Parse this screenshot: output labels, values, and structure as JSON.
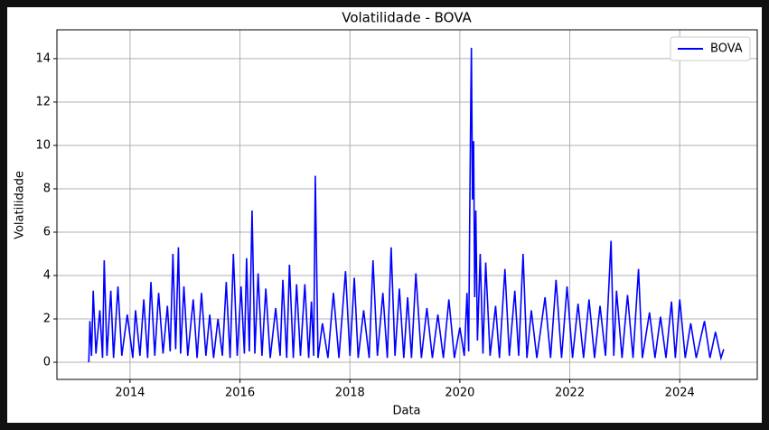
{
  "chart_data": {
    "type": "line",
    "title": "Volatilidade - BOVA",
    "xlabel": "Data",
    "ylabel": "Volatilidade",
    "x": [
      2013.25,
      2013.27,
      2013.3,
      2013.33,
      2013.38,
      2013.45,
      2013.5,
      2013.53,
      2013.58,
      2013.65,
      2013.7,
      2013.78,
      2013.85,
      2013.95,
      2014.05,
      2014.1,
      2014.18,
      2014.25,
      2014.32,
      2014.38,
      2014.45,
      2014.52,
      2014.6,
      2014.68,
      2014.73,
      2014.78,
      2014.83,
      2014.88,
      2014.92,
      2014.98,
      2015.05,
      2015.15,
      2015.22,
      2015.3,
      2015.38,
      2015.45,
      2015.52,
      2015.6,
      2015.68,
      2015.75,
      2015.82,
      2015.88,
      2015.95,
      2016.02,
      2016.08,
      2016.12,
      2016.17,
      2016.22,
      2016.27,
      2016.33,
      2016.4,
      2016.47,
      2016.55,
      2016.65,
      2016.73,
      2016.78,
      2016.85,
      2016.9,
      2016.97,
      2017.03,
      2017.1,
      2017.18,
      2017.25,
      2017.3,
      2017.34,
      2017.37,
      2017.42,
      2017.5,
      2017.6,
      2017.7,
      2017.8,
      2017.92,
      2018.0,
      2018.08,
      2018.15,
      2018.25,
      2018.35,
      2018.42,
      2018.5,
      2018.6,
      2018.68,
      2018.75,
      2018.82,
      2018.9,
      2018.98,
      2019.05,
      2019.12,
      2019.2,
      2019.3,
      2019.4,
      2019.5,
      2019.6,
      2019.7,
      2019.8,
      2019.9,
      2020.0,
      2020.08,
      2020.13,
      2020.16,
      2020.18,
      2020.2,
      2020.21,
      2020.23,
      2020.25,
      2020.27,
      2020.29,
      2020.32,
      2020.37,
      2020.42,
      2020.47,
      2020.55,
      2020.65,
      2020.72,
      2020.82,
      2020.9,
      2021.0,
      2021.07,
      2021.15,
      2021.22,
      2021.3,
      2021.4,
      2021.55,
      2021.65,
      2021.75,
      2021.85,
      2021.95,
      2022.05,
      2022.15,
      2022.25,
      2022.35,
      2022.45,
      2022.55,
      2022.65,
      2022.75,
      2022.8,
      2022.85,
      2022.95,
      2023.05,
      2023.15,
      2023.25,
      2023.32,
      2023.45,
      2023.55,
      2023.65,
      2023.75,
      2023.85,
      2023.92,
      2024.0,
      2024.1,
      2024.2,
      2024.3,
      2024.45,
      2024.55,
      2024.65,
      2024.75,
      2024.8
    ],
    "series": [
      {
        "name": "BOVA",
        "color": "#0000ff",
        "values": [
          0,
          1.9,
          0.3,
          3.3,
          0.4,
          2.4,
          0.2,
          4.7,
          0.3,
          3.3,
          0.2,
          3.5,
          0.3,
          2.2,
          0.2,
          2.4,
          0.3,
          2.9,
          0.2,
          3.7,
          0.3,
          3.2,
          0.4,
          2.6,
          0.5,
          5.0,
          0.6,
          5.3,
          0.4,
          3.5,
          0.3,
          2.9,
          0.2,
          3.2,
          0.3,
          2.2,
          0.2,
          2.0,
          0.3,
          3.7,
          0.2,
          5.0,
          0.3,
          3.5,
          0.4,
          4.8,
          0.5,
          7.0,
          0.4,
          4.1,
          0.3,
          3.4,
          0.2,
          2.5,
          0.3,
          3.8,
          0.2,
          4.5,
          0.2,
          3.6,
          0.3,
          3.6,
          0.2,
          2.8,
          0.3,
          8.6,
          0.2,
          1.8,
          0.2,
          3.2,
          0.2,
          4.2,
          0.3,
          3.9,
          0.2,
          2.4,
          0.2,
          4.7,
          0.3,
          3.2,
          0.2,
          5.3,
          0.3,
          3.4,
          0.2,
          3.0,
          0.2,
          4.1,
          0.2,
          2.5,
          0.2,
          2.2,
          0.2,
          2.9,
          0.2,
          1.6,
          0.3,
          3.2,
          0.5,
          6.9,
          12.4,
          14.5,
          7.5,
          10.2,
          3.0,
          7.0,
          1.0,
          5.0,
          0.4,
          4.6,
          0.3,
          2.6,
          0.2,
          4.3,
          0.3,
          3.3,
          0.3,
          5.0,
          0.2,
          2.4,
          0.2,
          3.0,
          0.2,
          3.8,
          0.2,
          3.5,
          0.2,
          2.7,
          0.2,
          2.9,
          0.2,
          2.6,
          0.3,
          5.6,
          0.3,
          3.3,
          0.2,
          3.1,
          0.2,
          4.3,
          0.2,
          2.3,
          0.2,
          2.1,
          0.2,
          2.8,
          0.2,
          2.9,
          0.2,
          1.8,
          0.2,
          1.9,
          0.2,
          1.4,
          0.2,
          0.6
        ]
      }
    ],
    "xlim": [
      2012.67,
      2025.41
    ],
    "xticks": [
      2014,
      2016,
      2018,
      2020,
      2022,
      2024
    ],
    "ylim": [
      -0.79,
      15.33
    ],
    "yticks": [
      0,
      2,
      4,
      6,
      8,
      10,
      12,
      14
    ],
    "grid": true,
    "legend": "upper right"
  }
}
